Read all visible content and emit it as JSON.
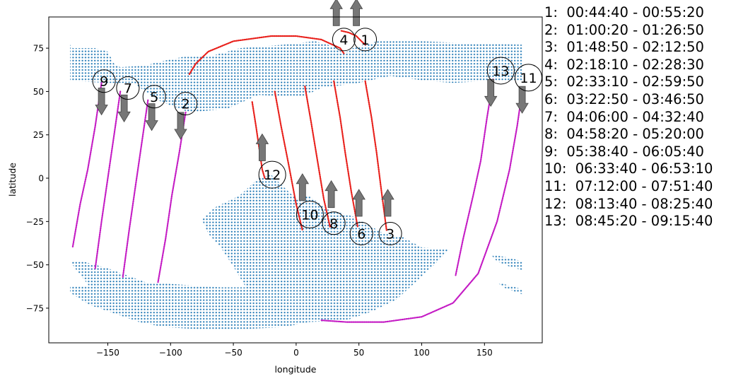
{
  "chart_data": {
    "type": "scatter",
    "title": "",
    "xlabel": "longitude",
    "ylabel": "latitude",
    "xlim": [
      -197,
      196
    ],
    "ylim": [
      -95,
      93
    ],
    "xticks": [
      -150,
      -100,
      -50,
      0,
      50,
      100,
      150
    ],
    "xtick_labels": [
      "−150",
      "−100",
      "−50",
      "0",
      "50",
      "100",
      "150"
    ],
    "yticks": [
      75,
      50,
      25,
      0,
      -25,
      -50,
      -75
    ],
    "ytick_labels": [
      "75",
      "50",
      "25",
      "0",
      "−25",
      "−50",
      "−75"
    ],
    "grid": false,
    "colors": {
      "coverage": "#1f77b4",
      "descending": "#e8201b",
      "ascending": "#c41bc4",
      "arrow": "#777777"
    },
    "coverage_regions": [
      {
        "name": "north",
        "polygon": [
          [
            -180,
            77
          ],
          [
            -178,
            75
          ],
          [
            -160,
            75
          ],
          [
            -150,
            73
          ],
          [
            -145,
            66
          ],
          [
            -140,
            64
          ],
          [
            -120,
            65
          ],
          [
            -110,
            67
          ],
          [
            -90,
            70
          ],
          [
            -70,
            70
          ],
          [
            -45,
            75
          ],
          [
            -10,
            77
          ],
          [
            15,
            79
          ],
          [
            30,
            76
          ],
          [
            38,
            72
          ],
          [
            45,
            75
          ],
          [
            55,
            77
          ],
          [
            65,
            79
          ],
          [
            100,
            79
          ],
          [
            130,
            78
          ],
          [
            180,
            77
          ],
          [
            180,
            56
          ],
          [
            150,
            56
          ],
          [
            125,
            55
          ],
          [
            105,
            56
          ],
          [
            75,
            59
          ],
          [
            50,
            55
          ],
          [
            20,
            52
          ],
          [
            5,
            47
          ],
          [
            -5,
            47
          ],
          [
            -30,
            48
          ],
          [
            -55,
            40
          ],
          [
            -85,
            38
          ],
          [
            -100,
            42
          ],
          [
            -110,
            45
          ],
          [
            -120,
            50
          ],
          [
            -130,
            55
          ],
          [
            -150,
            55
          ],
          [
            -180,
            56
          ]
        ]
      },
      {
        "name": "south",
        "polygon": [
          [
            -180,
            -48
          ],
          [
            -170,
            -48
          ],
          [
            -150,
            -52
          ],
          [
            -135,
            -56
          ],
          [
            -120,
            -60
          ],
          [
            -100,
            -61
          ],
          [
            -80,
            -62
          ],
          [
            -60,
            -63
          ],
          [
            -40,
            -63
          ],
          [
            -50,
            -51
          ],
          [
            -60,
            -40
          ],
          [
            -70,
            -32
          ],
          [
            -75,
            -24
          ],
          [
            -65,
            -17
          ],
          [
            -45,
            -10
          ],
          [
            -30,
            0
          ],
          [
            -20,
            2
          ],
          [
            -10,
            -5
          ],
          [
            0,
            -12
          ],
          [
            10,
            -10
          ],
          [
            25,
            -18
          ],
          [
            45,
            -22
          ],
          [
            60,
            -28
          ],
          [
            70,
            -32
          ],
          [
            85,
            -34
          ],
          [
            100,
            -40
          ],
          [
            122,
            -41
          ],
          [
            110,
            -50
          ],
          [
            95,
            -60
          ],
          [
            80,
            -70
          ],
          [
            60,
            -77
          ],
          [
            40,
            -82
          ],
          [
            10,
            -83
          ],
          [
            -10,
            -86
          ],
          [
            -40,
            -87
          ],
          [
            -80,
            -87
          ],
          [
            -105,
            -86
          ],
          [
            -125,
            -83
          ],
          [
            -145,
            -78
          ],
          [
            -165,
            -73
          ],
          [
            -180,
            -66
          ],
          [
            -180,
            -62
          ],
          [
            -165,
            -62
          ],
          [
            -175,
            -53
          ]
        ]
      },
      {
        "name": "south-east-islet",
        "polygon": [
          [
            155,
            -44
          ],
          [
            170,
            -46
          ],
          [
            180,
            -48
          ],
          [
            180,
            -53
          ],
          [
            170,
            -51
          ],
          [
            160,
            -48
          ]
        ]
      },
      {
        "name": "south-east-tail",
        "polygon": [
          [
            160,
            -60
          ],
          [
            180,
            -64
          ],
          [
            180,
            -67
          ],
          [
            165,
            -63
          ]
        ]
      }
    ],
    "passes": [
      {
        "label": "1",
        "time": "00:44:40 - 00:55:20",
        "type": "descending",
        "x": [
          36,
          42,
          48,
          52,
          55
        ],
        "y": [
          85,
          84,
          82,
          79,
          77
        ],
        "label_xy": [
          55,
          80
        ],
        "arrow": "up",
        "arrow_xy": [
          48,
          88
        ]
      },
      {
        "label": "2",
        "time": "01:00:20 - 01:26:50",
        "type": "ascending",
        "x": [
          -88,
          -93,
          -99,
          -104,
          -110
        ],
        "y": [
          38,
          15,
          -10,
          -35,
          -60
        ],
        "label_xy": [
          -88,
          43
        ],
        "arrow": "down",
        "arrow_xy": [
          -92,
          38
        ]
      },
      {
        "label": "3",
        "time": "01:48:50 - 02:12:50",
        "type": "descending",
        "x": [
          55,
          60,
          64,
          68,
          72
        ],
        "y": [
          56,
          35,
          15,
          -8,
          -30
        ],
        "label_xy": [
          75,
          -32
        ],
        "arrow": "up",
        "arrow_xy": [
          73,
          -22
        ]
      },
      {
        "label": "4",
        "time": "02:18:10 - 02:28:30",
        "type": "descending",
        "x": [
          -85,
          -80,
          -70,
          -50,
          -20,
          0,
          20,
          35,
          38
        ],
        "y": [
          60,
          66,
          73,
          79,
          82,
          82,
          80,
          75,
          72
        ],
        "label_xy": [
          38,
          80
        ],
        "arrow": "up",
        "arrow_xy": [
          32,
          88
        ]
      },
      {
        "label": "5",
        "time": "02:33:10 - 02:59:50",
        "type": "ascending",
        "x": [
          -118,
          -123,
          -128,
          -133,
          -138
        ],
        "y": [
          45,
          20,
          -5,
          -30,
          -57
        ],
        "label_xy": [
          -113,
          47
        ],
        "arrow": "down",
        "arrow_xy": [
          -115,
          43
        ]
      },
      {
        "label": "6",
        "time": "03:22:50 - 03:46:50",
        "type": "descending",
        "x": [
          30,
          35,
          39,
          44,
          49
        ],
        "y": [
          56,
          35,
          15,
          -8,
          -28
        ],
        "label_xy": [
          52,
          -32
        ],
        "arrow": "up",
        "arrow_xy": [
          50,
          -22
        ]
      },
      {
        "label": "7",
        "time": "04:06:00 - 04:32:40",
        "type": "ascending",
        "x": [
          -140,
          -145,
          -150,
          -155,
          -160
        ],
        "y": [
          50,
          25,
          0,
          -25,
          -52
        ],
        "label_xy": [
          -134,
          52
        ],
        "arrow": "down",
        "arrow_xy": [
          -137,
          48
        ]
      },
      {
        "label": "8",
        "time": "04:58:20 - 05:20:00",
        "type": "descending",
        "x": [
          7,
          12,
          17,
          22,
          27
        ],
        "y": [
          53,
          32,
          10,
          -12,
          -28
        ],
        "label_xy": [
          30,
          -26
        ],
        "arrow": "up",
        "arrow_xy": [
          28,
          -17
        ]
      },
      {
        "label": "9",
        "time": "05:38:40 - 06:05:40",
        "type": "ascending",
        "x": [
          -155,
          -160,
          -166,
          -172,
          -178
        ],
        "y": [
          55,
          30,
          5,
          -15,
          -40
        ],
        "label_xy": [
          -153,
          56
        ],
        "arrow": "down",
        "arrow_xy": [
          -155,
          52
        ]
      },
      {
        "label": "10",
        "time": "06:33:40 - 06:53:10",
        "type": "descending",
        "x": [
          -17,
          -12,
          -6,
          0,
          5
        ],
        "y": [
          50,
          30,
          8,
          -15,
          -30
        ],
        "label_xy": [
          11,
          -21
        ],
        "arrow": "up",
        "arrow_xy": [
          5,
          -13
        ]
      },
      {
        "label": "11",
        "time": "07:12:00 - 07:51:40",
        "type": "ascending",
        "x": [
          180,
          176,
          170,
          160,
          145,
          125,
          100,
          70,
          40,
          20
        ],
        "y": [
          50,
          30,
          5,
          -25,
          -55,
          -72,
          -80,
          -83,
          -83,
          -82
        ],
        "label_xy": [
          185,
          58
        ],
        "arrow": "down",
        "arrow_xy": [
          180,
          53
        ]
      },
      {
        "label": "12",
        "time": "08:13:40 - 08:25:40",
        "type": "descending",
        "x": [
          -35,
          -32,
          -29,
          -27,
          -25
        ],
        "y": [
          44,
          30,
          15,
          5,
          0
        ],
        "label_xy": [
          -19,
          2
        ],
        "arrow": "up",
        "arrow_xy": [
          -27,
          10
        ]
      },
      {
        "label": "13",
        "time": "08:45:20 - 09:15:40",
        "type": "ascending",
        "x": [
          157,
          152,
          147,
          141,
          133,
          127
        ],
        "y": [
          57,
          35,
          10,
          -10,
          -35,
          -56
        ],
        "label_xy": [
          163,
          62
        ],
        "arrow": "down",
        "arrow_xy": [
          155,
          57
        ]
      }
    ]
  }
}
